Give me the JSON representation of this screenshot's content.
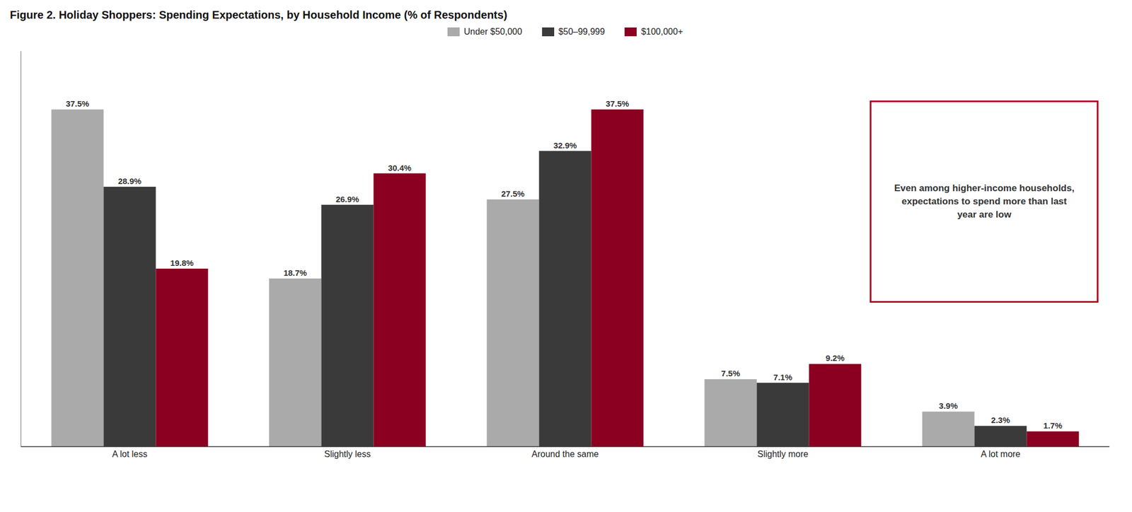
{
  "chart_data": {
    "type": "bar",
    "title": "Figure 2. Holiday Shoppers: Spending Expectations, by Household Income (% of Respondents)",
    "categories": [
      "A lot less",
      "Slightly less",
      "Around the same",
      "Slightly more",
      "A lot more"
    ],
    "series": [
      {
        "name": "Under $50,000",
        "color": "#aaaaaa",
        "values": [
          37.5,
          18.7,
          27.5,
          7.5,
          3.9
        ],
        "value_labels": [
          "37.5%",
          "18.7%",
          "27.5%",
          "7.5%",
          "3.9%"
        ]
      },
      {
        "name": "$50–99,999",
        "color": "#3a3a3a",
        "values": [
          28.9,
          26.9,
          32.9,
          7.1,
          2.3
        ],
        "value_labels": [
          "28.9%",
          "26.9%",
          "32.9%",
          "7.1%",
          "2.3%"
        ]
      },
      {
        "name": "$100,000+",
        "color": "#8b0020",
        "values": [
          19.8,
          30.4,
          37.5,
          9.2,
          1.7
        ],
        "value_labels": [
          "19.8%",
          "30.4%",
          "37.5%",
          "9.2%",
          "1.7%"
        ]
      }
    ],
    "ylim": [
      0,
      44
    ],
    "grid": false,
    "legend": "top",
    "data_labels": true,
    "tick_labels": "x",
    "annotation": "Even among higher-income households,\nexpectations to spend more than last\nyear are low"
  }
}
